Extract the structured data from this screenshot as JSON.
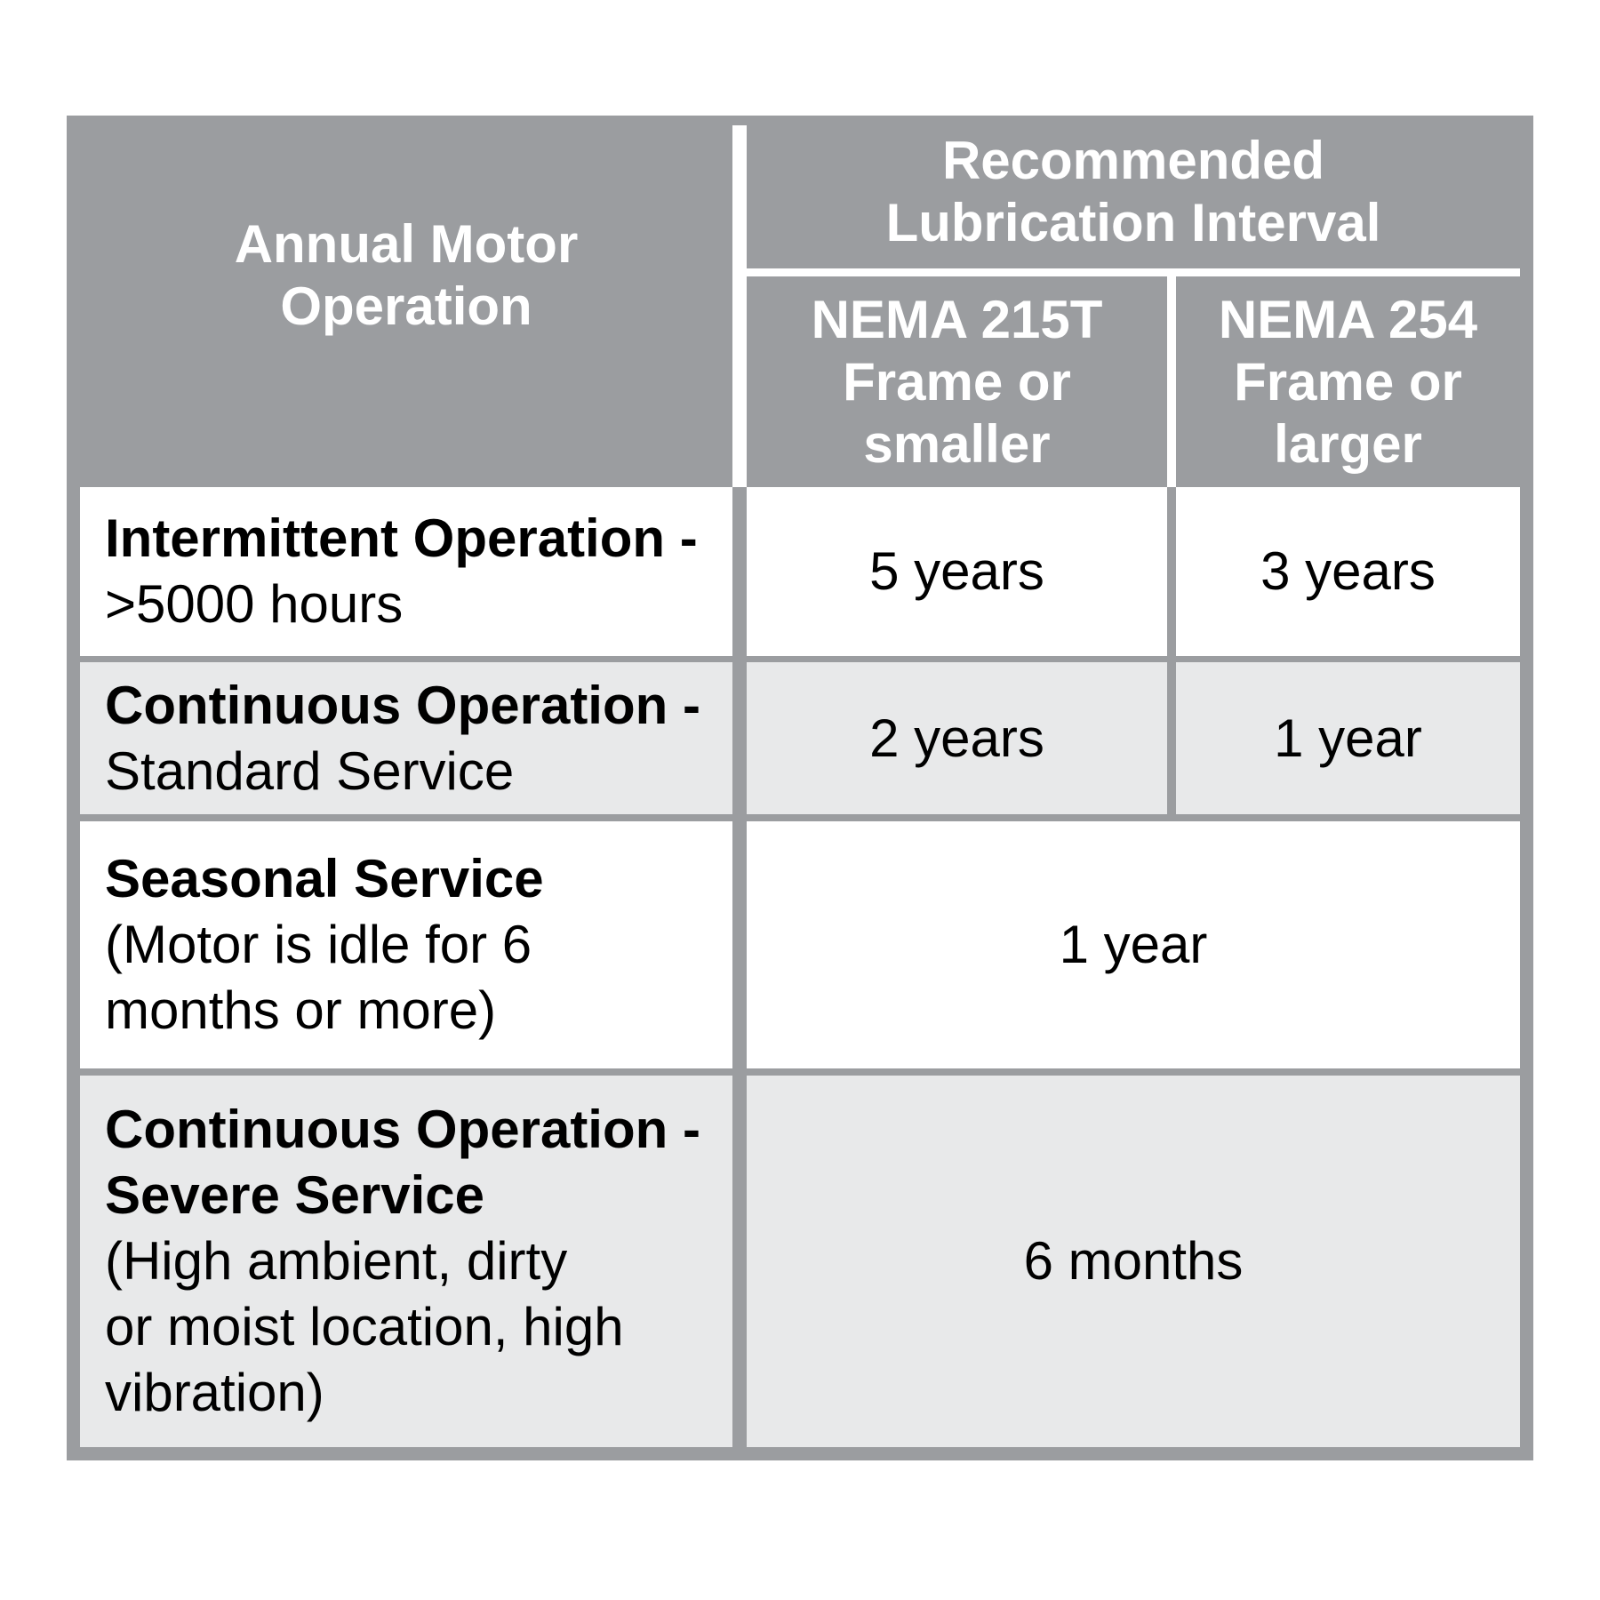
{
  "colors": {
    "grid_and_header_gray": "#9b9da0",
    "shaded_row_gray": "#e8e9ea",
    "plain_row_white": "#ffffff",
    "header_text": "#ffffff",
    "body_text": "#000000"
  },
  "table": {
    "row_header": "Annual Motor\nOperation",
    "column_group_header": "Recommended\nLubrication Interval",
    "columns": [
      {
        "label": "NEMA 215T\nFrame or\nsmaller"
      },
      {
        "label": "NEMA 254\nFrame or\nlarger"
      }
    ],
    "rows": [
      {
        "label_bold": "Intermittent Operation -",
        "label_regular": ">5000 hours",
        "nema_215t": "5 years",
        "nema_254": "3 years"
      },
      {
        "label_bold": "Continuous Operation -",
        "label_regular": "Standard Service",
        "nema_215t": "2 years",
        "nema_254": "1 year"
      },
      {
        "label_bold": "Seasonal Service",
        "label_regular": "(Motor is idle for 6\nmonths or more)",
        "merged_value": "1 year"
      },
      {
        "label_bold": "Continuous Operation -\nSevere Service",
        "label_regular": "(High ambient, dirty\nor moist location, high\nvibration)",
        "merged_value": "6 months"
      }
    ]
  }
}
